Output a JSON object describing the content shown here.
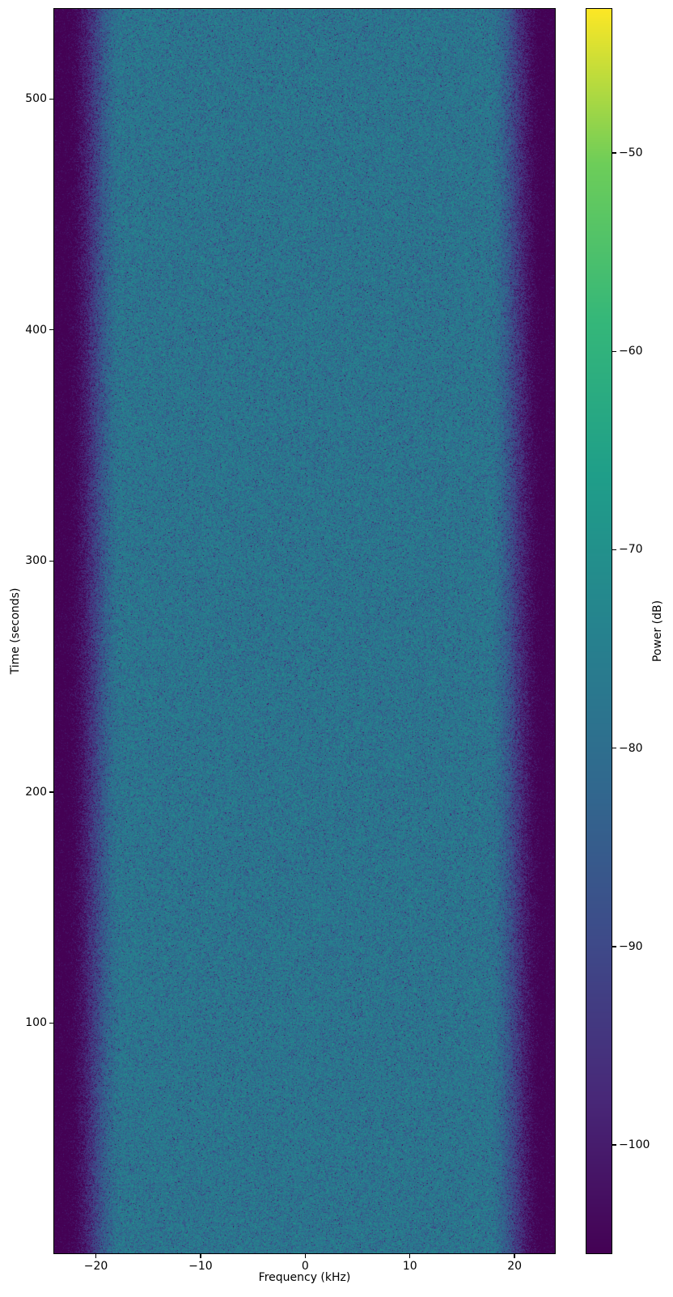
{
  "figure_title": "",
  "x_axis": {
    "label": "Frequency (kHz)",
    "ticks": [
      {
        "value": -20,
        "label": "−20"
      },
      {
        "value": -10,
        "label": "−10"
      },
      {
        "value": 0,
        "label": "0"
      },
      {
        "value": 10,
        "label": "10"
      },
      {
        "value": 20,
        "label": "20"
      }
    ]
  },
  "y_axis": {
    "label": "Time (seconds)",
    "ticks": [
      {
        "value": 100,
        "label": "100"
      },
      {
        "value": 200,
        "label": "200"
      },
      {
        "value": 300,
        "label": "300"
      },
      {
        "value": 400,
        "label": "400"
      },
      {
        "value": 500,
        "label": "500"
      }
    ]
  },
  "colorbar": {
    "label": "Power (dB)",
    "ticks": [
      {
        "value": -50,
        "label": "−50"
      },
      {
        "value": -60,
        "label": "−60"
      },
      {
        "value": -70,
        "label": "−70"
      },
      {
        "value": -80,
        "label": "−80"
      },
      {
        "value": -90,
        "label": "−90"
      },
      {
        "value": -100,
        "label": "−100"
      }
    ]
  },
  "chart_data": {
    "type": "heatmap",
    "subtype": "spectrogram",
    "title": "",
    "xlabel": "Frequency (kHz)",
    "ylabel": "Time (seconds)",
    "colorbar_label": "Power (dB)",
    "colormap": "viridis",
    "grid": false,
    "xlim_khz": [
      -24.06,
      23.93
    ],
    "ylim_s": [
      0,
      539.3
    ],
    "clim_db": [
      -105.5,
      -42.7
    ],
    "x_ticks_khz": [
      -20,
      -10,
      0,
      10,
      20
    ],
    "y_ticks_s": [
      100,
      200,
      300,
      400,
      500
    ],
    "colorbar_ticks_db": [
      -50,
      -60,
      -70,
      -80,
      -90,
      -100
    ],
    "content_description": "Stationary broadband noise spectrogram: flat passband with speckle noise, dark low-power bands at both frequency extremes, constant over the whole time span",
    "spectral_profile": {
      "passband_power_db": -76,
      "passband_edge_khz": 17.5,
      "stopband_edge_khz": 23.0,
      "stopband_power_db": -107,
      "speckle_model": "exponential per-pixel power fading",
      "time_variation": "none"
    }
  }
}
